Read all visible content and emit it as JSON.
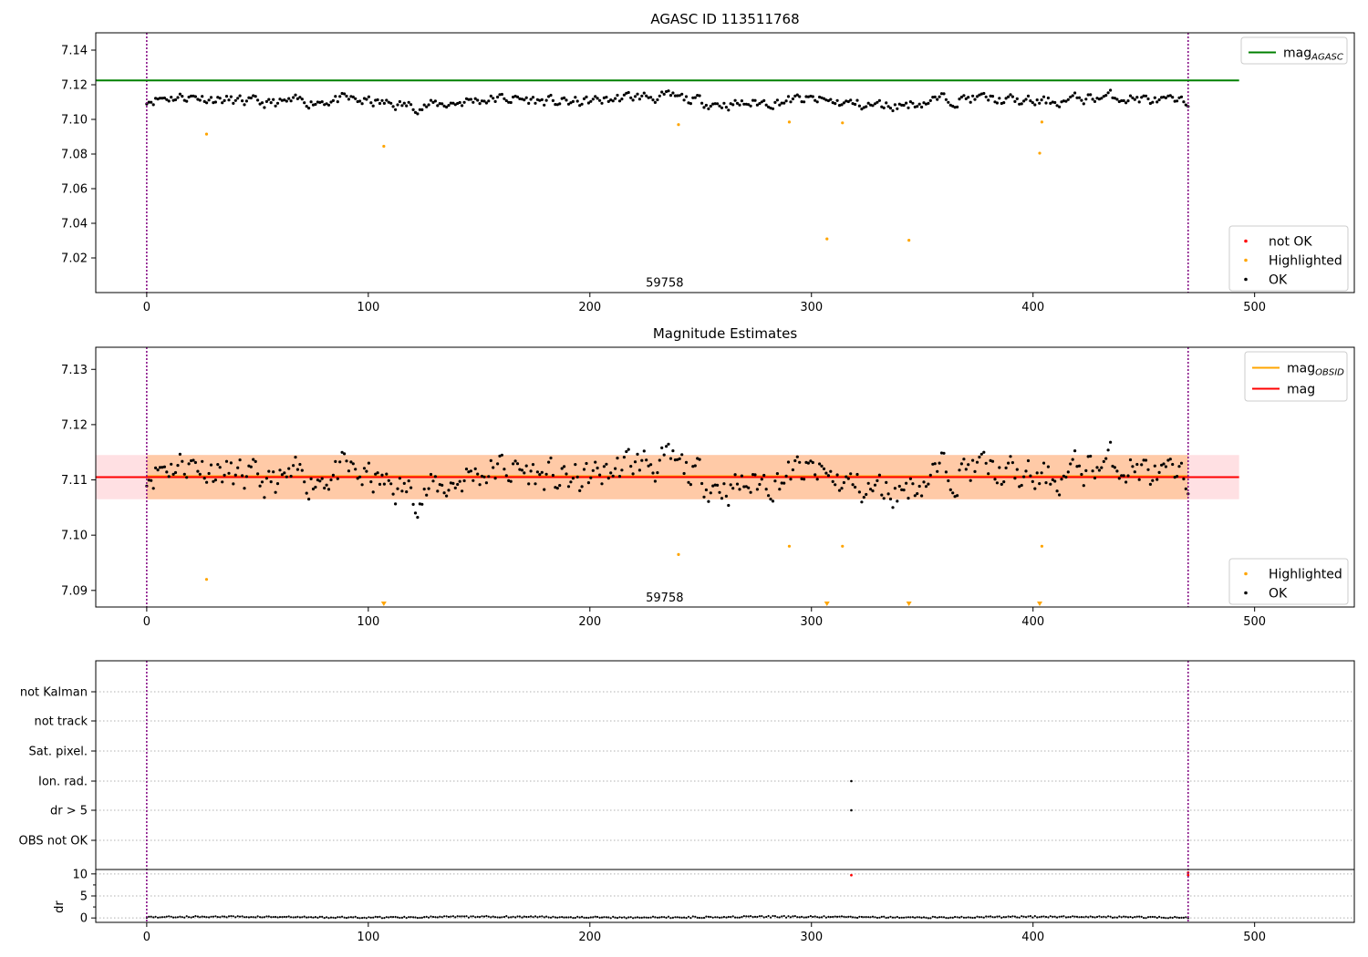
{
  "colors": {
    "ok": "#000000",
    "highlighted": "#ffa500",
    "not_ok": "#ff0000",
    "agasc": "#008000",
    "mag": "#ff0000",
    "obsid": "#ffa500",
    "obsid_band": "#ffc8a0",
    "mag_band": "#ffd8dc",
    "obs_boundary": "#800080"
  },
  "chart_data": [
    {
      "type": "scatter",
      "title": "AGASC ID 113511768",
      "xlim": [
        -23,
        545
      ],
      "ylim": [
        7.0,
        7.15
      ],
      "xticks": [
        0,
        100,
        200,
        300,
        400,
        500
      ],
      "yticks": [
        7.02,
        7.04,
        7.06,
        7.08,
        7.1,
        7.12,
        7.14
      ],
      "obs_boundaries": [
        0,
        470
      ],
      "obsid_annotation": {
        "label": "59758",
        "x": 235,
        "y": 7.0035
      },
      "mag_agasc": {
        "value": 7.1225,
        "x_range": [
          -23,
          493
        ]
      },
      "ok_series": {
        "n": 470,
        "mean": 7.1105,
        "amplitude": 0.0045,
        "x_range": [
          0,
          470
        ]
      },
      "highlighted_points": [
        [
          27,
          7.0915
        ],
        [
          107,
          7.0845
        ],
        [
          240,
          7.097
        ],
        [
          290,
          7.0985
        ],
        [
          307,
          7.031
        ],
        [
          314,
          7.098
        ],
        [
          344,
          7.0302
        ],
        [
          403,
          7.0805
        ],
        [
          404,
          7.0985
        ]
      ],
      "legend_top": {
        "position": "top-right",
        "entries": [
          {
            "name": "mag",
            "sub": "AGASC",
            "kind": "line",
            "color": "#008000"
          }
        ]
      },
      "legend_bottom": {
        "position": "bottom-right",
        "entries": [
          {
            "name": "not OK",
            "kind": "marker",
            "color": "#ff0000"
          },
          {
            "name": "Highlighted",
            "kind": "marker",
            "color": "#ffa500"
          },
          {
            "name": "OK",
            "kind": "marker",
            "color": "#000000"
          }
        ]
      }
    },
    {
      "type": "scatter",
      "title": "Magnitude Estimates",
      "xlim": [
        -23,
        545
      ],
      "ylim": [
        7.087,
        7.134
      ],
      "xticks": [
        0,
        100,
        200,
        300,
        400,
        500
      ],
      "yticks": [
        7.09,
        7.1,
        7.11,
        7.12,
        7.13
      ],
      "obs_boundaries": [
        0,
        470
      ],
      "obsid_annotation": {
        "label": "59758",
        "x": 235,
        "y": 7.088
      },
      "mag": {
        "value": 7.1105,
        "x_range": [
          -23,
          493
        ],
        "band": [
          7.1065,
          7.1145
        ]
      },
      "mag_obsid": {
        "value": 7.1105,
        "x_range": [
          0,
          470
        ],
        "band": [
          7.1065,
          7.1145
        ]
      },
      "ok_series": {
        "n": 470,
        "mean": 7.1105,
        "amplitude": 0.0045,
        "x_range": [
          0,
          470
        ]
      },
      "highlighted_points": [
        [
          27,
          7.092
        ],
        [
          240,
          7.0965
        ],
        [
          290,
          7.098
        ],
        [
          314,
          7.098
        ],
        [
          404,
          7.098
        ]
      ],
      "below_range_markers": [
        107,
        307,
        344,
        403
      ],
      "legend_top": {
        "position": "top-right",
        "entries": [
          {
            "name": "mag",
            "sub": "OBSID",
            "kind": "line",
            "color": "#ffa500"
          },
          {
            "name": "mag",
            "kind": "line",
            "color": "#ff0000"
          }
        ]
      },
      "legend_bottom": {
        "position": "bottom-right",
        "entries": [
          {
            "name": "Highlighted",
            "kind": "marker",
            "color": "#ffa500"
          },
          {
            "name": "OK",
            "kind": "marker",
            "color": "#000000"
          }
        ]
      }
    },
    {
      "type": "scatter",
      "xlim": [
        -23,
        545
      ],
      "xticks": [
        0,
        100,
        200,
        300,
        400,
        500
      ],
      "flag_labels": [
        "not Kalman",
        "not track",
        "Sat. pixel.",
        "Ion. rad.",
        "dr > 5",
        "OBS not OK"
      ],
      "flag_points": [
        {
          "flag": "Ion. rad.",
          "x": 318
        },
        {
          "flag": "dr > 5",
          "x": 318
        }
      ],
      "obs_boundaries": [
        0,
        470
      ],
      "dr": {
        "ylabel": "dr",
        "ylim": [
          -1,
          11
        ],
        "yticks": [
          0,
          5,
          10
        ],
        "n": 470,
        "mean": 0.2,
        "flagged_points": [
          [
            318,
            9.7
          ],
          [
            470,
            9.7
          ],
          [
            470,
            10.3
          ]
        ]
      }
    }
  ]
}
